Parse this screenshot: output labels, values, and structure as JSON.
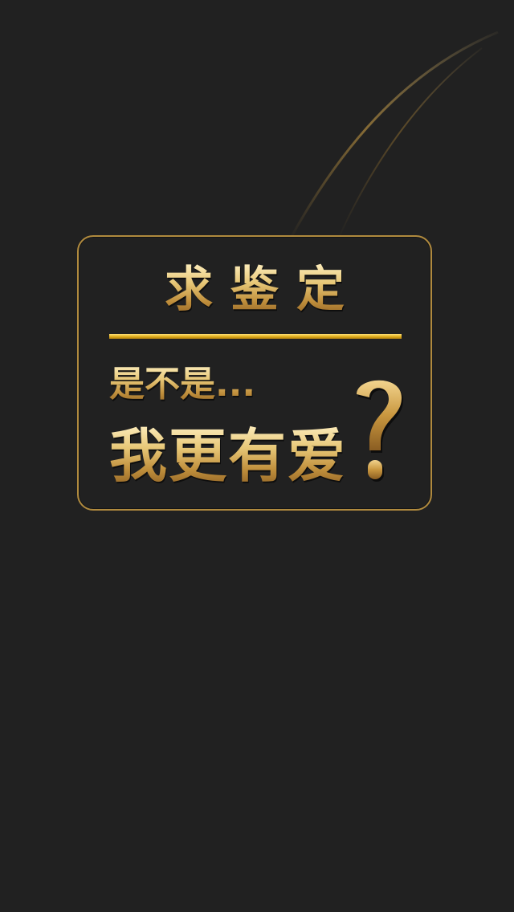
{
  "card": {
    "title": "求鉴定",
    "subtitle": "是不是...",
    "main_text": "我更有爱",
    "icon": "question-mark-icon"
  },
  "colors": {
    "background": "#212121",
    "gold_light": "#fff1c4",
    "gold_mid": "#c08f3c",
    "gold_dark": "#8a5d22",
    "border": "#b08a3e",
    "divider": "#e0ad1c"
  }
}
